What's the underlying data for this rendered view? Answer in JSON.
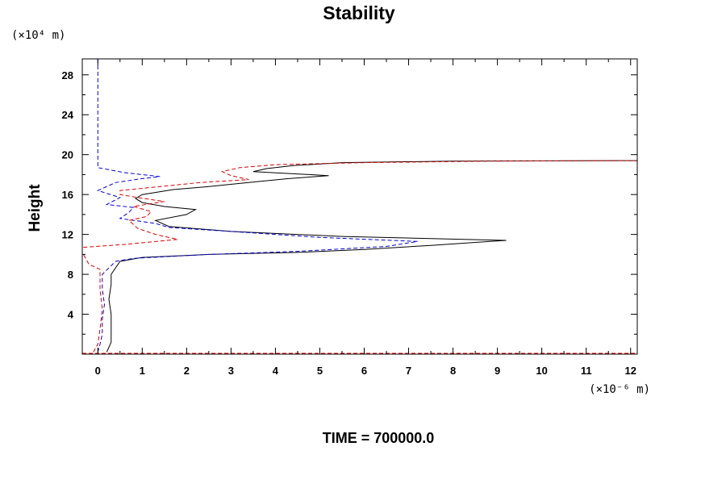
{
  "chart_data": {
    "type": "line",
    "title": "Stability",
    "ylabel": "Height",
    "xlabel": "",
    "y_unit": "(×10⁴ m)",
    "x_unit": "(×10⁻⁶ m)",
    "xlim": [
      -0.35,
      12.15
    ],
    "ylim": [
      0,
      29.6
    ],
    "x_ticks": [
      0,
      1,
      2,
      3,
      4,
      5,
      6,
      7,
      8,
      9,
      10,
      11,
      12
    ],
    "y_ticks": [
      4,
      8,
      12,
      16,
      20,
      24,
      28
    ],
    "grid": false,
    "legend": "none",
    "footer": "TIME = 700000.0",
    "series": [
      {
        "color": "#000000",
        "dash": "solid",
        "points": [
          [
            0.2,
            0.2
          ],
          [
            0.3,
            1.2
          ],
          [
            0.3,
            2.5
          ],
          [
            0.3,
            4.0
          ],
          [
            0.25,
            5.5
          ],
          [
            0.3,
            7.0
          ],
          [
            0.3,
            8.0
          ],
          [
            0.5,
            9.3
          ],
          [
            1.0,
            9.7
          ],
          [
            2.5,
            10.0
          ],
          [
            4.5,
            10.2
          ],
          [
            6.0,
            10.5
          ],
          [
            7.5,
            10.9
          ],
          [
            8.5,
            11.2
          ],
          [
            9.2,
            11.4
          ],
          [
            5.5,
            11.8
          ],
          [
            3.0,
            12.3
          ],
          [
            1.6,
            12.8
          ],
          [
            1.3,
            13.4
          ],
          [
            2.0,
            14.0
          ],
          [
            2.2,
            14.5
          ],
          [
            1.5,
            14.8
          ],
          [
            1.0,
            15.2
          ],
          [
            0.85,
            15.6
          ],
          [
            1.0,
            16.0
          ],
          [
            1.7,
            16.5
          ],
          [
            2.5,
            16.8
          ],
          [
            3.6,
            17.3
          ],
          [
            4.3,
            17.6
          ],
          [
            5.2,
            17.9
          ],
          [
            3.5,
            18.3
          ],
          [
            3.8,
            18.6
          ],
          [
            4.4,
            18.9
          ],
          [
            5.5,
            19.2
          ],
          [
            8.0,
            19.35
          ],
          [
            12.15,
            19.4
          ]
        ]
      },
      {
        "color": "#0000dd",
        "dash": "dashed",
        "points": [
          [
            0.0,
            0.2
          ],
          [
            0.05,
            1.0
          ],
          [
            0.1,
            2.0
          ],
          [
            0.1,
            3.5
          ],
          [
            0.15,
            5.0
          ],
          [
            0.1,
            6.5
          ],
          [
            0.1,
            8.0
          ],
          [
            0.4,
            9.3
          ],
          [
            0.8,
            9.6
          ],
          [
            2.5,
            10.0
          ],
          [
            4.5,
            10.3
          ],
          [
            6.5,
            10.8
          ],
          [
            7.2,
            11.3
          ],
          [
            5.0,
            11.7
          ],
          [
            3.0,
            12.3
          ],
          [
            1.6,
            12.7
          ],
          [
            1.3,
            13.1
          ],
          [
            0.5,
            13.6
          ],
          [
            0.7,
            14.2
          ],
          [
            0.8,
            14.7
          ],
          [
            0.2,
            15.0
          ],
          [
            0.5,
            15.7
          ],
          [
            0.0,
            16.4
          ],
          [
            0.4,
            17.2
          ],
          [
            1.0,
            17.6
          ],
          [
            1.4,
            17.8
          ],
          [
            0.6,
            18.2
          ],
          [
            0.0,
            18.7
          ],
          [
            0.0,
            19.5
          ],
          [
            0.0,
            24.0
          ],
          [
            0.0,
            29.6
          ]
        ]
      },
      {
        "color": "#dd0000",
        "dash": "dashed",
        "points": [
          [
            -0.1,
            0.2
          ],
          [
            0.0,
            1.0
          ],
          [
            0.05,
            2.5
          ],
          [
            0.1,
            4.5
          ],
          [
            0.05,
            6.5
          ],
          [
            0.05,
            8.5
          ],
          [
            -0.2,
            9.0
          ],
          [
            -0.3,
            9.8
          ],
          [
            -0.35,
            10.2
          ],
          [
            -0.35,
            10.7
          ],
          [
            0.6,
            11.0
          ],
          [
            1.8,
            11.5
          ],
          [
            1.3,
            12.0
          ],
          [
            0.9,
            12.6
          ],
          [
            0.7,
            13.4
          ],
          [
            1.1,
            13.8
          ],
          [
            1.2,
            14.3
          ],
          [
            0.8,
            14.8
          ],
          [
            1.5,
            15.3
          ],
          [
            0.9,
            15.7
          ],
          [
            0.5,
            16.0
          ],
          [
            0.5,
            16.4
          ],
          [
            1.4,
            16.8
          ],
          [
            2.3,
            17.2
          ],
          [
            3.4,
            17.5
          ],
          [
            3.0,
            17.9
          ],
          [
            2.8,
            18.3
          ],
          [
            3.2,
            18.7
          ],
          [
            4.0,
            19.0
          ],
          [
            6.0,
            19.2
          ],
          [
            9.0,
            19.35
          ],
          [
            12.15,
            19.4
          ]
        ]
      }
    ]
  }
}
